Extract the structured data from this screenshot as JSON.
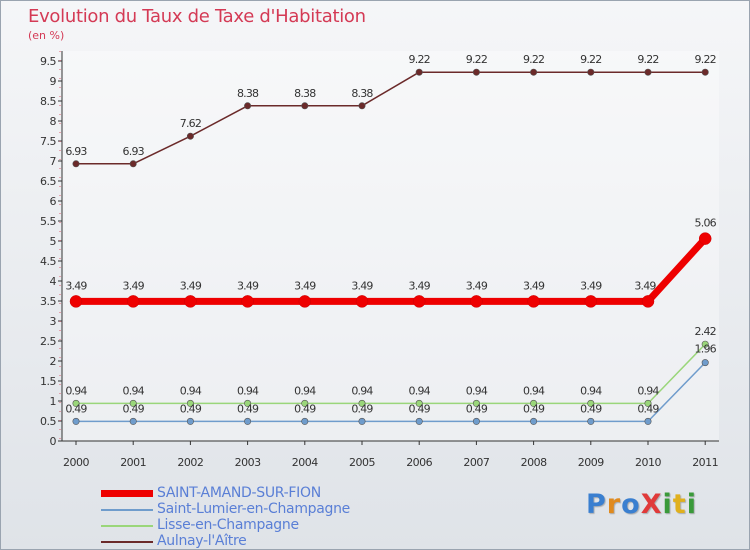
{
  "chart_data": {
    "type": "line",
    "title": "Evolution du Taux de Taxe d'Habitation",
    "ylabel": "(en %)",
    "xlabel": "",
    "ylim": [
      0,
      9.5
    ],
    "y_ticks": [
      "0",
      "0.5",
      "1",
      "1.5",
      "2",
      "2.5",
      "3",
      "3.5",
      "4",
      "4.5",
      "5",
      "5.5",
      "6",
      "6.5",
      "7",
      "7.5",
      "8",
      "8.5",
      "9",
      "9.5"
    ],
    "x": [
      "2000",
      "2001",
      "2002",
      "2003",
      "2004",
      "2005",
      "2006",
      "2007",
      "2008",
      "2009",
      "2010",
      "2011"
    ],
    "series": [
      {
        "name": "SAINT-AMAND-SUR-FION",
        "color": "#ee0000",
        "values": [
          3.49,
          3.49,
          3.49,
          3.49,
          3.49,
          3.49,
          3.49,
          3.49,
          3.49,
          3.49,
          3.49,
          5.06
        ],
        "labels": [
          "3.49",
          "3.49",
          "3.49",
          "3.49",
          "3.49",
          "3.49",
          "3.49",
          "3.49",
          "3.49",
          "3.49",
          "3.49",
          "5.06"
        ]
      },
      {
        "name": "Saint-Lumier-en-Champagne",
        "color": "#6f9ccc",
        "values": [
          0.49,
          0.49,
          0.49,
          0.49,
          0.49,
          0.49,
          0.49,
          0.49,
          0.49,
          0.49,
          0.49,
          1.96
        ],
        "labels": [
          "0.49",
          "0.49",
          "0.49",
          "0.49",
          "0.49",
          "0.49",
          "0.49",
          "0.49",
          "0.49",
          "0.49",
          "0.49",
          "1.96"
        ]
      },
      {
        "name": "Lisse-en-Champagne",
        "color": "#9ad67a",
        "values": [
          0.94,
          0.94,
          0.94,
          0.94,
          0.94,
          0.94,
          0.94,
          0.94,
          0.94,
          0.94,
          0.94,
          2.42
        ],
        "labels": [
          "0.94",
          "0.94",
          "0.94",
          "0.94",
          "0.94",
          "0.94",
          "0.94",
          "0.94",
          "0.94",
          "0.94",
          "0.94",
          "2.42"
        ]
      },
      {
        "name": "Aulnay-l'Aître",
        "color": "#6b2a2a",
        "values": [
          6.93,
          6.93,
          7.62,
          8.38,
          8.38,
          8.38,
          9.22,
          9.22,
          9.22,
          9.22,
          9.22,
          9.22
        ],
        "labels": [
          "6.93",
          "6.93",
          "7.62",
          "8.38",
          "8.38",
          "8.38",
          "9.22",
          "9.22",
          "9.22",
          "9.22",
          "9.22",
          "9.22"
        ]
      }
    ]
  },
  "logo": {
    "text": "ProXiti"
  }
}
